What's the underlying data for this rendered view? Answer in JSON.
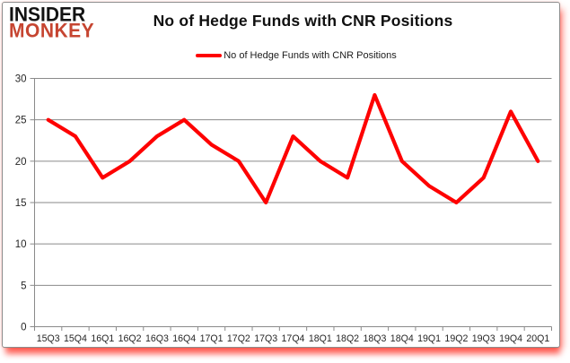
{
  "logo": {
    "line1": "INSIDER",
    "line2": "MONKEY"
  },
  "header": {
    "title": "No of Hedge Funds with CNR Positions"
  },
  "legend": {
    "label": "No of Hedge Funds with CNR Positions"
  },
  "colors": {
    "series_line": "#fe0000",
    "grid_line": "#8a8a8a",
    "axis_text": "#262626",
    "logo_accent": "#c64531",
    "frame_border": "#8c8c8c",
    "glow": "#ff1e00"
  },
  "chart_data": {
    "type": "line",
    "title": "No of Hedge Funds with CNR Positions",
    "series_name": "No of Hedge Funds with CNR Positions",
    "categories": [
      "15Q3",
      "15Q4",
      "16Q1",
      "16Q2",
      "16Q3",
      "16Q4",
      "17Q1",
      "17Q2",
      "17Q3",
      "17Q4",
      "18Q1",
      "18Q2",
      "18Q3",
      "18Q4",
      "19Q1",
      "19Q2",
      "19Q3",
      "19Q4",
      "20Q1"
    ],
    "values": [
      25,
      23,
      18,
      20,
      23,
      25,
      22,
      20,
      15,
      23,
      20,
      18,
      28,
      20,
      17,
      15,
      18,
      26,
      20
    ],
    "xlabel": "",
    "ylabel": "",
    "ylim": [
      0,
      30
    ],
    "y_ticks": [
      0,
      5,
      10,
      15,
      20,
      25,
      30
    ],
    "grid": true,
    "legend_position": "top-center"
  }
}
